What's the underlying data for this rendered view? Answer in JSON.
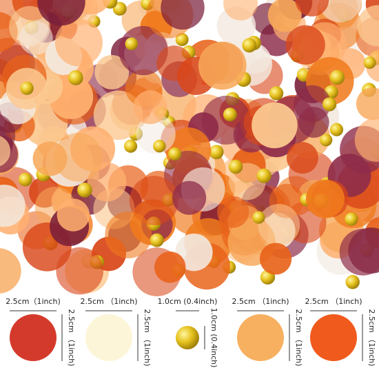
{
  "items": [
    {
      "width_label": "2.5cm（1inch)",
      "height_label": "2.5cm （1inch)"
    },
    {
      "width_label": "2.5cm （1inch)",
      "height_label": "2.5cm （1inch)"
    },
    {
      "width_label": "1.0cm (0.4inch)",
      "height_label": "1.0cm (0.4inch)"
    },
    {
      "width_label": "2.5cm （1inch)",
      "height_label": "2.5cm （1inch)"
    },
    {
      "width_label": "2.5cm （1inch)",
      "height_label": "2.5cm （1inch)"
    }
  ]
}
